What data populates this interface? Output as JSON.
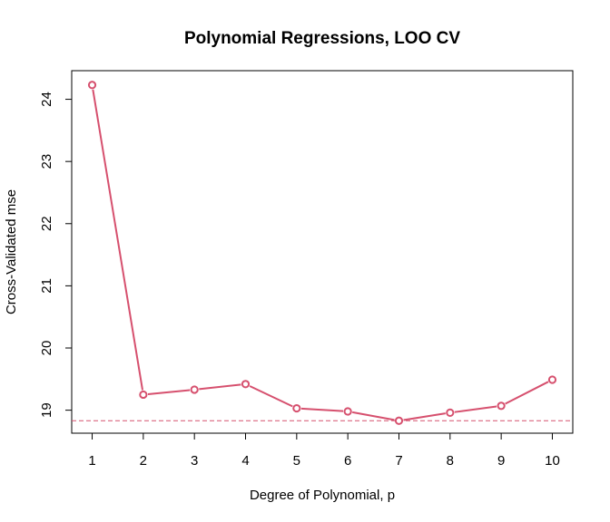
{
  "chart_data": {
    "type": "line",
    "title": "Polynomial Regressions, LOO CV",
    "xlabel": "Degree of Polynomial, p",
    "ylabel": "Cross-Validated mse",
    "x": [
      1,
      2,
      3,
      4,
      5,
      6,
      7,
      8,
      9,
      10
    ],
    "series": [
      {
        "values": [
          24.23,
          19.25,
          19.33,
          19.42,
          19.03,
          18.98,
          18.83,
          18.96,
          19.07,
          19.49
        ],
        "color": "#d6506e",
        "marker": "open-circle"
      }
    ],
    "reference_line": {
      "y": 18.83,
      "style": "dashed",
      "color": "#d6506e"
    },
    "xlim": [
      0.6,
      10.4
    ],
    "ylim": [
      18.63,
      24.46
    ],
    "xticks": [
      "1",
      "2",
      "3",
      "4",
      "5",
      "6",
      "7",
      "8",
      "9",
      "10"
    ],
    "yticks": [
      "19",
      "20",
      "21",
      "22",
      "23",
      "24"
    ],
    "grid": false,
    "legend": "none"
  }
}
